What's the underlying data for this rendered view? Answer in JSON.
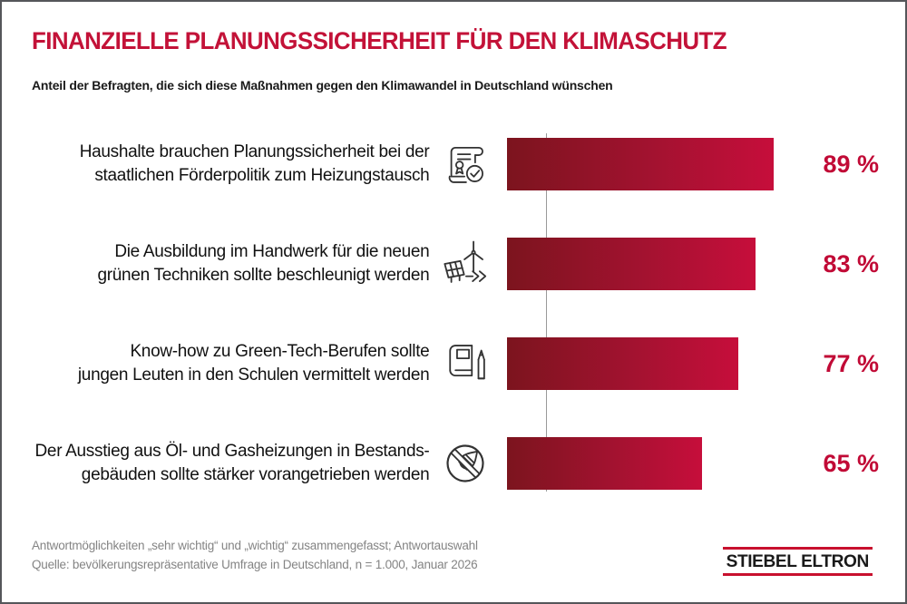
{
  "header": {
    "title": "FINANZIELLE PLANUNGSSICHERHEIT FÜR DEN KLIMASCHUTZ",
    "subtitle": "Anteil der Befragten, die sich diese Maßnahmen gegen den Klimawandel in Deutschland wünschen"
  },
  "chart_data": {
    "type": "bar",
    "orientation": "horizontal",
    "unit": "%",
    "xlim": [
      0,
      100
    ],
    "grid": false,
    "legend": false,
    "categories": [
      "Haushalte brauchen Planungssicherheit bei der staatlichen Förderpolitik zum Heizungstausch",
      "Die Ausbildung im Handwerk für die neuen grünen Techniken sollte beschleunigt werden",
      "Know-how zu Green-Tech-Berufen sollte jungen Leuten in den Schulen vermittelt werden",
      "Der Ausstieg aus Öl- und Gasheizungen in Bestandsgebäuden sollte stärker vorangetrieben werden"
    ],
    "values": [
      89,
      83,
      77,
      65
    ],
    "rows": [
      {
        "label_line1": "Haushalte brauchen Planungssicherheit bei der",
        "label_line2": "staatlichen Förderpolitik zum Heizungstausch",
        "icon": "certificate-check-icon",
        "value": 89,
        "value_label": "89 %"
      },
      {
        "label_line1": "Die Ausbildung im Handwerk für die neuen",
        "label_line2": "grünen Techniken sollte beschleunigt werden",
        "icon": "wind-solar-icon",
        "value": 83,
        "value_label": "83 %"
      },
      {
        "label_line1": "Know-how zu Green-Tech-Berufen sollte",
        "label_line2": "jungen Leuten in den Schulen vermittelt werden",
        "icon": "book-pencil-icon",
        "value": 77,
        "value_label": "77 %"
      },
      {
        "label_line1": "Der Ausstieg aus Öl- und Gasheizungen in Bestands-",
        "label_line2": "gebäuden sollte stärker vorangetrieben werden",
        "icon": "no-oil-icon",
        "value": 65,
        "value_label": "65 %"
      }
    ],
    "bar_gradient": [
      "#7c141e",
      "#c60e3b"
    ],
    "value_label_color": "#c10a36"
  },
  "footer": {
    "note1": "Antwortmöglichkeiten „sehr wichtig“ und „wichtig“ zusammengefasst; Antwortauswahl",
    "note2": "Quelle: bevölkerungsrepräsentative Umfrage in Deutschland, n = 1.000, Januar 2026",
    "logo_text": "STIEBEL ELTRON"
  },
  "colors": {
    "title": "#c31238",
    "logo_red": "#c8102e",
    "frame": "#55565a",
    "axis": "#9a9a9a",
    "footnote": "#848484"
  }
}
